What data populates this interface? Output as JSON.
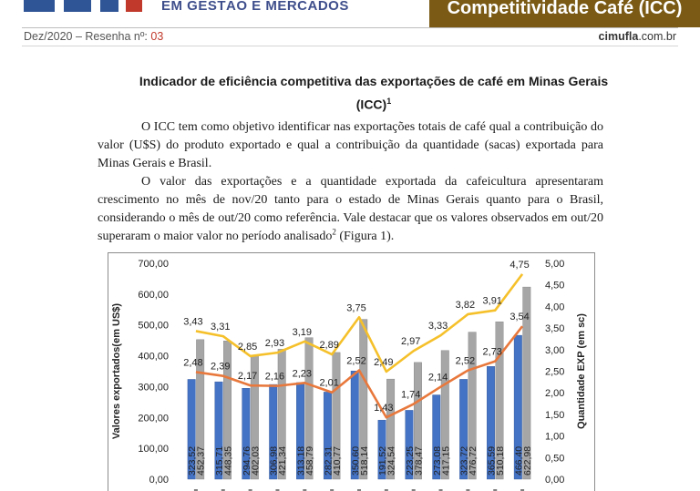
{
  "header": {
    "brand_subtitle": "EM GESTÃO E MERCADOS",
    "banner_title": "Competitividade Café (ICC)",
    "issue_label": "Dez/2020 – Resenha nº: ",
    "issue_number": "03",
    "site_bold": "cimufla",
    "site_rest": ".com.br",
    "colors": {
      "banner": "#7a5a14",
      "brand_blue": "#3f4f8c",
      "brand_red": "#c0392b"
    }
  },
  "document": {
    "title_line1": "Indicador de eficiência competitiva das exportações de café em Minas Gerais",
    "title_line2": "(ICC)",
    "title_sup": "1",
    "paragraph1": "O ICC tem como objetivo identificar nas exportações totais de café qual a contribuição do valor (U$S) do produto exportado e qual a contribuição da quantidade (sacas) exportada para Minas Gerais e Brasil.",
    "paragraph2": "O valor das exportações e a quantidade exportada da cafeicultura apresentaram crescimento no mês de nov/20 tanto para o estado de Minas Gerais quanto para o Brasil, considerando o mês de out/20 como referência. Vale destacar que os valores observados em out/20 superaram o maior valor no período analisado",
    "paragraph2_sup": "2",
    "paragraph2_tail": " (Figura 1)."
  },
  "chart_data": {
    "type": "bar",
    "ylabel": "Valores exportados(em US$)",
    "y2label": "Quantidade EXP (em sc)",
    "ylim": [
      0,
      700
    ],
    "y2lim": [
      0,
      5
    ],
    "yticks": [
      "0,00",
      "100,00",
      "200,00",
      "300,00",
      "400,00",
      "500,00",
      "600,00",
      "700,00"
    ],
    "y2ticks": [
      "0,00",
      "0,50",
      "1,00",
      "1,50",
      "2,00",
      "2,50",
      "3,00",
      "3,50",
      "4,00",
      "4,50",
      "5,00"
    ],
    "series": [
      {
        "kind": "bar",
        "color": "#4472c4",
        "values": [
          323.52,
          315.71,
          294.76,
          306.98,
          313.18,
          282.31,
          350.6,
          191.52,
          223.25,
          273.08,
          323.72,
          365.59,
          466.4
        ],
        "labels": [
          "323,52",
          "315,71",
          "294,76",
          "306,98",
          "313,18",
          "282,31",
          "350,60",
          "191,52",
          "223,25",
          "273,08",
          "323,72",
          "365,59",
          "466,40"
        ]
      },
      {
        "kind": "bar",
        "color": "#a6a6a6",
        "values": [
          452.37,
          448.35,
          402.03,
          421.34,
          458.79,
          410.77,
          518.14,
          324.54,
          378.47,
          417.15,
          476.72,
          510.18,
          622.98
        ],
        "labels": [
          "452,37",
          "448,35",
          "402,03",
          "421,34",
          "458,79",
          "410,77",
          "518,14",
          "324,54",
          "378,47",
          "417,15",
          "476,72",
          "510,18",
          "622,98"
        ]
      },
      {
        "kind": "line",
        "color": "#f5c02a",
        "values": [
          3.43,
          3.31,
          2.85,
          2.93,
          3.19,
          2.89,
          3.75,
          2.49,
          2.97,
          3.33,
          3.82,
          3.91,
          4.75
        ],
        "labels": [
          "3,43",
          "3,31",
          "2,85",
          "2,93",
          "3,19",
          "2,89",
          "3,75",
          "2,49",
          "2,97",
          "3,33",
          "3,82",
          "3,91",
          "4,75"
        ]
      },
      {
        "kind": "line",
        "color": "#e8783c",
        "values": [
          2.48,
          2.39,
          2.17,
          2.16,
          2.23,
          2.01,
          2.52,
          1.43,
          1.74,
          2.14,
          2.52,
          2.73,
          3.54
        ],
        "labels": [
          "2,48",
          "2,39",
          "2,17",
          "2,16",
          "2,23",
          "2,01",
          "2,52",
          "1,43",
          "1,74",
          "2,14",
          "2,52",
          "2,73",
          "3,54"
        ]
      }
    ]
  }
}
